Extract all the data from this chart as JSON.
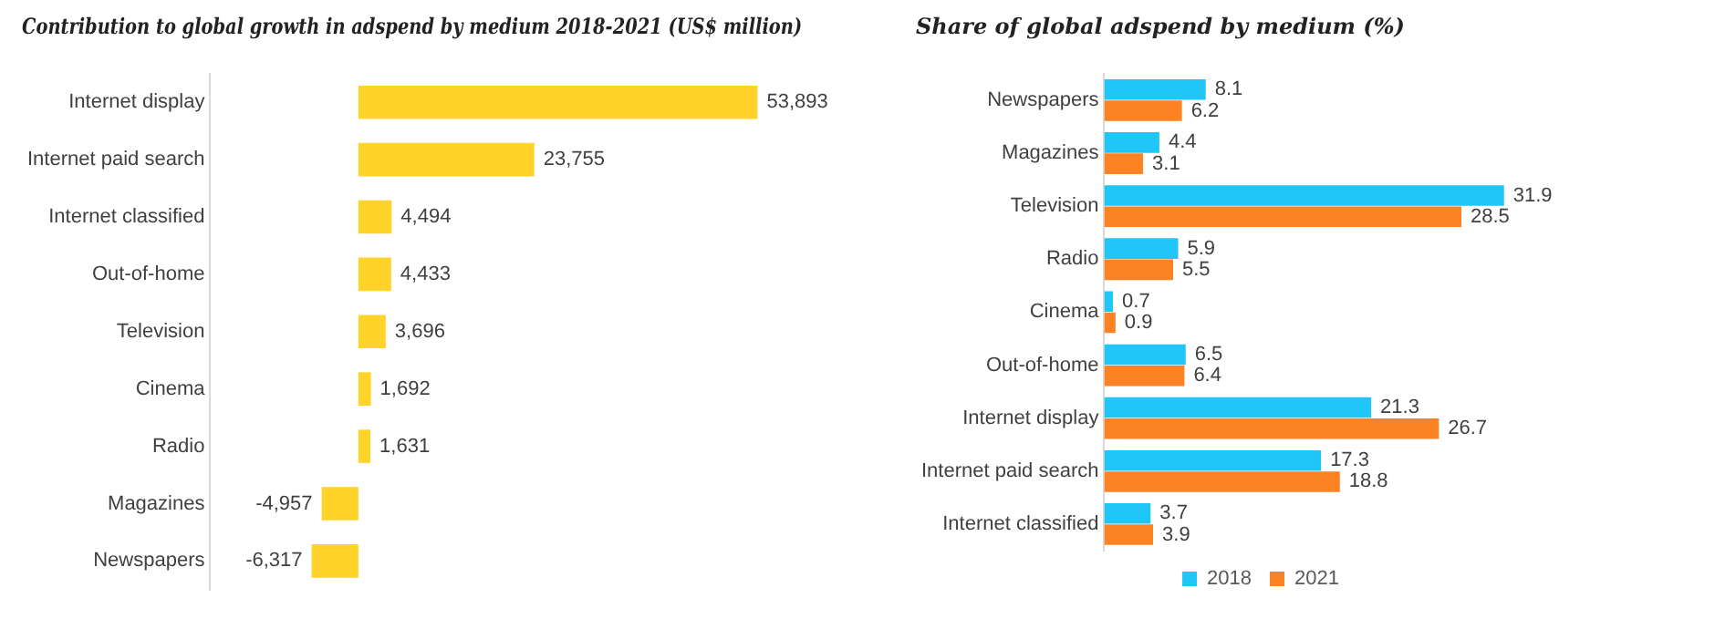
{
  "chart_data": [
    {
      "type": "bar",
      "orientation": "horizontal",
      "title": "Contribution to global growth in adspend by medium 2018-2021 (US$ million)",
      "categories": [
        "Internet display",
        "Internet paid search",
        "Internet classified",
        "Out-of-home",
        "Television",
        "Cinema",
        "Radio",
        "Magazines",
        "Newspapers"
      ],
      "values": [
        53893,
        23755,
        4494,
        4433,
        3696,
        1692,
        1631,
        -4957,
        -6317
      ],
      "value_labels": [
        "53,893",
        "23,755",
        "4,494",
        "4,433",
        "3,696",
        "1,692",
        "1,631",
        "-4,957",
        "-6,317"
      ],
      "color": "#ffd32a",
      "tick_labels": "y"
    },
    {
      "type": "bar",
      "orientation": "horizontal",
      "title": "Share of global adspend by medium (%)",
      "categories": [
        "Newspapers",
        "Magazines",
        "Television",
        "Radio",
        "Cinema",
        "Out-of-home",
        "Internet display",
        "Internet paid search",
        "Internet classified"
      ],
      "series": [
        {
          "name": "2018",
          "color": "#21c6f8",
          "values": [
            8.1,
            4.4,
            31.9,
            5.9,
            0.7,
            6.5,
            21.3,
            17.3,
            3.7
          ]
        },
        {
          "name": "2021",
          "color": "#fd8224",
          "values": [
            6.2,
            3.1,
            28.5,
            5.5,
            0.9,
            6.4,
            26.7,
            18.8,
            3.9
          ]
        }
      ],
      "data_labels": true,
      "legend": "bottom",
      "tick_labels": "y"
    }
  ]
}
